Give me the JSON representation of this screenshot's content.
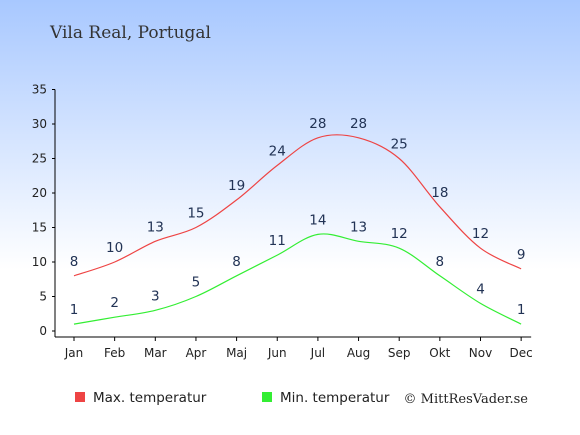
{
  "chart_data": {
    "type": "line",
    "title": "Vila Real, Portugal",
    "categories": [
      "Jan",
      "Feb",
      "Mar",
      "Apr",
      "Maj",
      "Jun",
      "Jul",
      "Aug",
      "Sep",
      "Okt",
      "Nov",
      "Dec"
    ],
    "series": [
      {
        "name": "Max. temperatur",
        "color": "#ee4444",
        "values": [
          8,
          10,
          13,
          15,
          19,
          24,
          28,
          28,
          25,
          18,
          12,
          9
        ]
      },
      {
        "name": "Min. temperatur",
        "color": "#33ee33",
        "values": [
          1,
          2,
          3,
          5,
          8,
          11,
          14,
          13,
          12,
          8,
          4,
          1
        ]
      }
    ],
    "ylim": [
      0,
      35
    ],
    "yticks": [
      0,
      5,
      10,
      15,
      20,
      25,
      30,
      35
    ],
    "grid": false,
    "legend_position": "bottom-left",
    "credit": "© MittResVader.se",
    "background_gradient": [
      "#a8c8ff",
      "#ffffff"
    ]
  }
}
